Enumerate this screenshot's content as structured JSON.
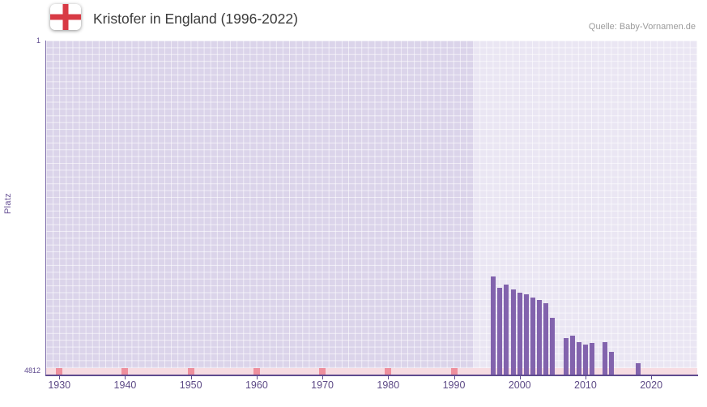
{
  "header": {
    "title": "Kristofer in England (1996-2022)",
    "source": "Quelle: Baby-Vornamen.de",
    "flag_icon": "england-flag-icon"
  },
  "colors": {
    "bar": "#8263ad",
    "plot_background": "#dbd4ea",
    "highlight_background": "rgba(255,255,255,0.42)",
    "grid_line": "rgba(255,255,255,0.6)",
    "axis": "#5f4b8f",
    "tick_label": "#5d4a86",
    "no_data_strip": "#f7dce2",
    "no_data_marker": "#ee8f9d",
    "flag_cross": "#d83a45",
    "title_text": "#3b3b3b",
    "source_text": "#9b9b9b"
  },
  "chart_data": {
    "type": "bar",
    "title": "Kristofer in England (1996-2022)",
    "xlabel": "",
    "ylabel": "Platz",
    "legend": false,
    "grid": true,
    "y_axis": {
      "min": 1,
      "max": 4812,
      "inverted": true,
      "top_label": "1",
      "bottom_label": "4812"
    },
    "x_axis": {
      "start": 1928,
      "end": 2027,
      "ticks": [
        1930,
        1940,
        1950,
        1960,
        1970,
        1980,
        1990,
        2000,
        2010,
        2020
      ]
    },
    "highlight_start": 1993,
    "series": [
      {
        "name": "Platz",
        "points": [
          {
            "year": 1996,
            "rank": 3400
          },
          {
            "year": 1997,
            "rank": 3560
          },
          {
            "year": 1998,
            "rank": 3520
          },
          {
            "year": 1999,
            "rank": 3590
          },
          {
            "year": 2000,
            "rank": 3630
          },
          {
            "year": 2001,
            "rank": 3660
          },
          {
            "year": 2002,
            "rank": 3700
          },
          {
            "year": 2003,
            "rank": 3740
          },
          {
            "year": 2004,
            "rank": 3780
          },
          {
            "year": 2005,
            "rank": 3990
          },
          {
            "year": 2006,
            "rank": null
          },
          {
            "year": 2007,
            "rank": 4290
          },
          {
            "year": 2008,
            "rank": 4250
          },
          {
            "year": 2009,
            "rank": 4340
          },
          {
            "year": 2010,
            "rank": 4380
          },
          {
            "year": 2011,
            "rank": 4360
          },
          {
            "year": 2012,
            "rank": null
          },
          {
            "year": 2013,
            "rank": 4350
          },
          {
            "year": 2014,
            "rank": 4480
          },
          {
            "year": 2015,
            "rank": null
          },
          {
            "year": 2016,
            "rank": null
          },
          {
            "year": 2017,
            "rank": null
          },
          {
            "year": 2018,
            "rank": 4650
          },
          {
            "year": 2019,
            "rank": null
          },
          {
            "year": 2020,
            "rank": null
          },
          {
            "year": 2021,
            "rank": null
          },
          {
            "year": 2022,
            "rank": null
          }
        ]
      }
    ],
    "no_data_strip": {
      "marker_years": [
        1930,
        1940,
        1950,
        1960,
        1970,
        1980,
        1990
      ]
    }
  }
}
